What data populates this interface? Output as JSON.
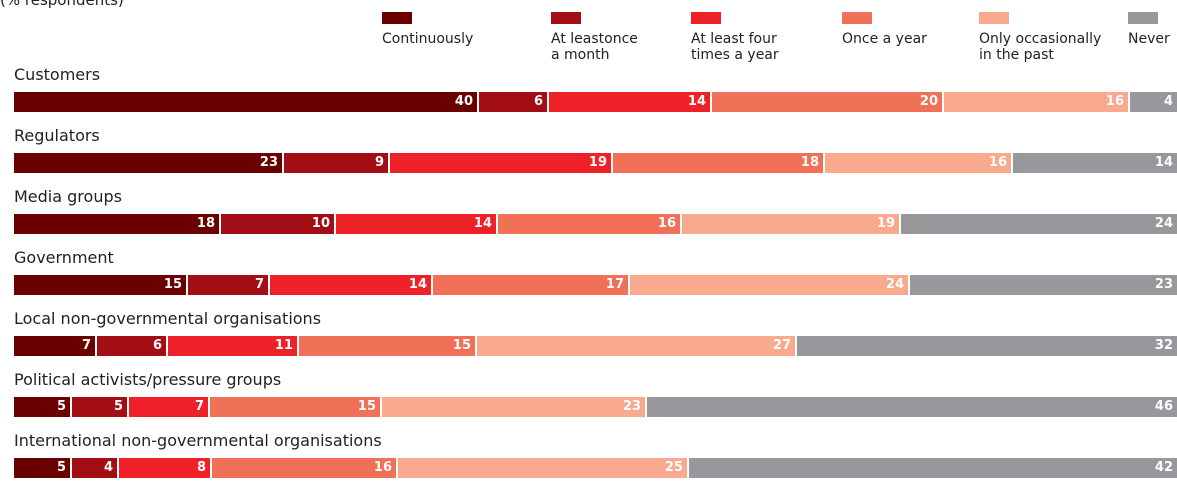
{
  "chart_data": {
    "type": "bar",
    "orientation": "horizontal",
    "stacked": true,
    "subtitle": "(% respondents)",
    "legend_position": "top",
    "series": [
      {
        "name": "Continuously",
        "color": "#6b0000"
      },
      {
        "name": "At leastonce\na month",
        "color": "#a30d14"
      },
      {
        "name": "At least four\ntimes a year",
        "color": "#ee2128"
      },
      {
        "name": "Once a year",
        "color": "#f07158"
      },
      {
        "name": "Only occasionally\nin the past",
        "color": "#f8a98e"
      },
      {
        "name": "Never",
        "color": "#97979c"
      }
    ],
    "categories": [
      "Customers",
      "Regulators",
      "Media groups",
      "Government",
      "Local non-governmental organisations",
      "Political activists/pressure groups",
      "International non-governmental organisations"
    ],
    "values": [
      [
        40,
        6,
        14,
        20,
        16,
        4
      ],
      [
        23,
        9,
        19,
        18,
        16,
        14
      ],
      [
        18,
        10,
        14,
        16,
        19,
        24
      ],
      [
        15,
        7,
        14,
        17,
        24,
        23
      ],
      [
        7,
        6,
        11,
        15,
        27,
        32
      ],
      [
        5,
        5,
        7,
        15,
        23,
        46
      ],
      [
        5,
        4,
        8,
        16,
        25,
        42
      ]
    ]
  }
}
